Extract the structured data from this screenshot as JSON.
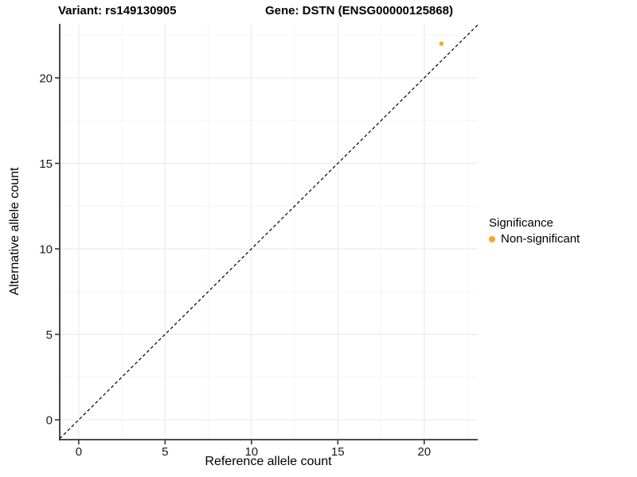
{
  "chart_data": {
    "type": "scatter",
    "title_left": "Variant: rs149130905",
    "title_right": "Gene: DSTN (ENSG00000125868)",
    "xlabel": "Reference allele count",
    "ylabel": "Alternative allele count",
    "x_ticks": [
      0,
      5,
      10,
      15,
      20
    ],
    "x_minor_ticks": [
      2.5,
      7.5,
      12.5,
      17.5,
      22.5
    ],
    "y_ticks": [
      0,
      5,
      10,
      15,
      20
    ],
    "y_minor_ticks": [
      2.5,
      7.5,
      12.5,
      17.5,
      22.5
    ],
    "xlim": [
      -1.1,
      23.1
    ],
    "ylim": [
      -1.16,
      23.16
    ],
    "grid": "major+minor",
    "points": [
      {
        "x": 21,
        "y": 22,
        "series": "Non-significant"
      }
    ],
    "identity_line": {
      "slope": 1,
      "intercept": 0,
      "style": "dashed"
    },
    "legend": {
      "title": "Significance",
      "position": "right",
      "items": [
        {
          "label": "Non-significant",
          "color": "#FDA428"
        }
      ]
    },
    "colors": {
      "point": "#FDA428",
      "axis": "#333333",
      "grid_major": "#EBEBEB",
      "grid_minor": "#F5F5F5",
      "tick_label": "#1a1a1a",
      "abline": "#000000",
      "background": "#ffffff"
    }
  }
}
